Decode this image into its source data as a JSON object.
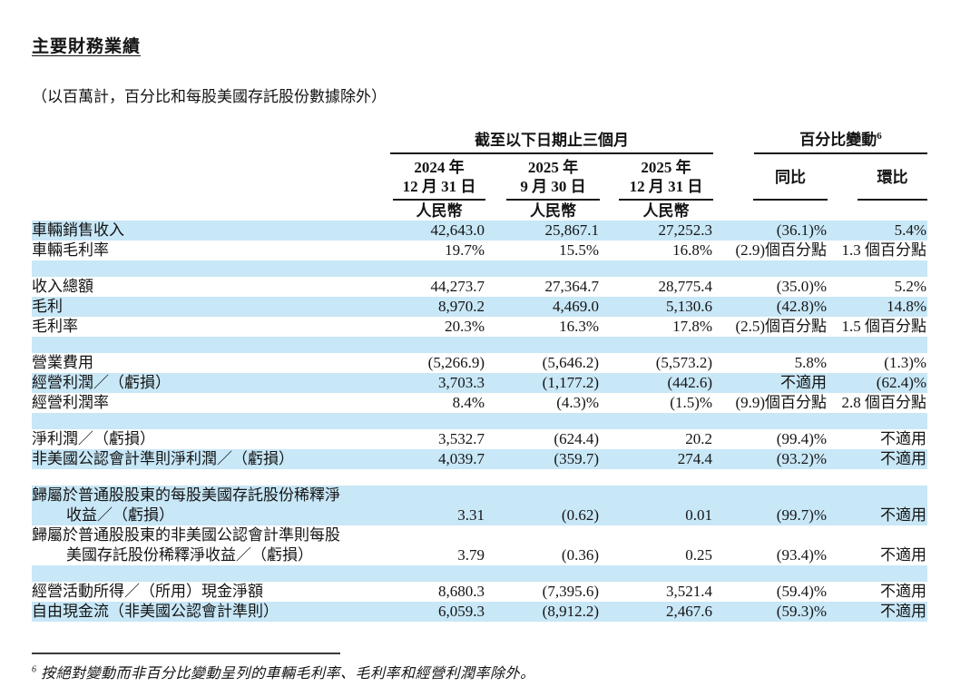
{
  "page": {
    "title": "主要財務業績",
    "subtitle": "（以百萬計，百分比和每股美國存託股份數據除外）",
    "footnote": {
      "marker": "6",
      "text": "按絕對變動而非百分比變動呈列的車輛毛利率、毛利率和經營利潤率除外。"
    }
  },
  "colors": {
    "highlight_row": "#c8e7f7",
    "text": "#141414",
    "rule": "#161616"
  },
  "table": {
    "group_headers": [
      {
        "label": "截至以下日期止三個月",
        "span": 3
      },
      {
        "label": "百分比變動",
        "sup": "6",
        "span": 2
      }
    ],
    "columns": [
      {
        "line1": "2024 年",
        "line2": "12 月 31 日",
        "sub": "人民幣"
      },
      {
        "line1": "2025 年",
        "line2": "9 月 30 日",
        "sub": "人民幣"
      },
      {
        "line1": "2025 年",
        "line2": "12 月 31 日",
        "sub": "人民幣"
      },
      {
        "label": "同比"
      },
      {
        "label": "環比"
      }
    ],
    "rows": [
      {
        "type": "data",
        "label": "車輛銷售收入",
        "values": [
          "42,643.0",
          "25,867.1",
          "27,252.3",
          "(36.1)%",
          "5.4%"
        ],
        "highlight": true
      },
      {
        "type": "data",
        "label": "車輛毛利率",
        "values": [
          "19.7%",
          "15.5%",
          "16.8%",
          "(2.9)個百分點",
          "1.3 個百分點"
        ],
        "highlight": false
      },
      {
        "type": "spacer",
        "highlight": true
      },
      {
        "type": "data",
        "label": "收入總額",
        "values": [
          "44,273.7",
          "27,364.7",
          "28,775.4",
          "(35.0)%",
          "5.2%"
        ],
        "highlight": false
      },
      {
        "type": "data",
        "label": "毛利",
        "values": [
          "8,970.2",
          "4,469.0",
          "5,130.6",
          "(42.8)%",
          "14.8%"
        ],
        "highlight": true
      },
      {
        "type": "data",
        "label": "毛利率",
        "values": [
          "20.3%",
          "16.3%",
          "17.8%",
          "(2.5)個百分點",
          "1.5 個百分點"
        ],
        "highlight": false
      },
      {
        "type": "spacer",
        "highlight": true
      },
      {
        "type": "data",
        "label": "營業費用",
        "values": [
          "(5,266.9)",
          "(5,646.2)",
          "(5,573.2)",
          "5.8%",
          "(1.3)%"
        ],
        "highlight": false
      },
      {
        "type": "data",
        "label": "經營利潤／（虧損）",
        "values": [
          "3,703.3",
          "(1,177.2)",
          "(442.6)",
          "不適用",
          "(62.4)%"
        ],
        "highlight": true
      },
      {
        "type": "data",
        "label": "經營利潤率",
        "values": [
          "8.4%",
          "(4.3)%",
          "(1.5)%",
          "(9.9)個百分點",
          "2.8 個百分點"
        ],
        "highlight": false
      },
      {
        "type": "spacer",
        "highlight": true
      },
      {
        "type": "data",
        "label": "淨利潤／（虧損）",
        "values": [
          "3,532.7",
          "(624.4)",
          "20.2",
          "(99.4)%",
          "不適用"
        ],
        "highlight": false
      },
      {
        "type": "data",
        "label": "非美國公認會計準則淨利潤／（虧損）",
        "values": [
          "4,039.7",
          "(359.7)",
          "274.4",
          "(93.2)%",
          "不適用"
        ],
        "highlight": true
      },
      {
        "type": "spacer",
        "highlight": false
      },
      {
        "type": "data",
        "label": "歸屬於普通股股東的每股美國存託股份稀釋淨",
        "label2": "收益／（虧損）",
        "values": [
          "3.31",
          "(0.62)",
          "0.01",
          "(99.7)%",
          "不適用"
        ],
        "highlight": true
      },
      {
        "type": "data",
        "label": "歸屬於普通股股東的非美國公認會計準則每股",
        "label2": "美國存託股份稀釋淨收益／（虧損）",
        "values": [
          "3.79",
          "(0.36)",
          "0.25",
          "(93.4)%",
          "不適用"
        ],
        "highlight": false
      },
      {
        "type": "spacer",
        "highlight": true
      },
      {
        "type": "data",
        "label": "經營活動所得／（所用）現金淨額",
        "values": [
          "8,680.3",
          "(7,395.6)",
          "3,521.4",
          "(59.4)%",
          "不適用"
        ],
        "highlight": false
      },
      {
        "type": "data",
        "label": "自由現金流（非美國公認會計準則）",
        "values": [
          "6,059.3",
          "(8,912.2)",
          "2,467.6",
          "(59.3)%",
          "不適用"
        ],
        "highlight": true
      }
    ]
  }
}
